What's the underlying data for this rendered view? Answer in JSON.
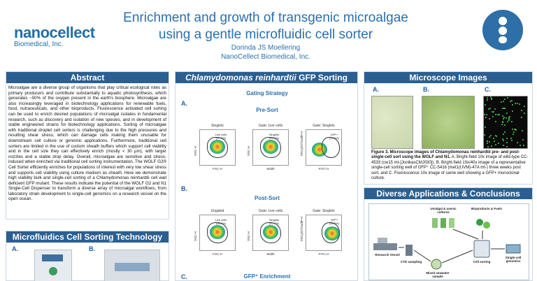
{
  "header": {
    "logo_main": "nanocellect",
    "logo_sub": "Biomedical, Inc.",
    "title_line1": "Enrichment and growth of transgenic microalgae",
    "title_line2": "using a gentle microfluidic cell sorter",
    "author": "Dorinda JS Moellering",
    "affiliation": "NanoCellect Biomedical, Inc."
  },
  "abstract": {
    "heading": "Abstract",
    "body": "Microalgae are a diverse group of organisms that play critical ecological roles as primary producers and contribute substantially to aquatic photosynthesis, which generates ~50% of the oxygen present in the earth's biosphere. Microalgae are also increasingly leveraged in biotechnology applications for renewable fuels, food, nutraceuticals, and other bioproducts. Fluorescence activated cell sorting can be used to enrich desired populations of microalgal isolates in fundamental research, such as discovery and isolation of new species, and in development of stable engineered strains for biotechnology applications. Sorting of microalgae with traditional droplet cell sorters is challenging due to the high pressures and resulting shear stress, which can damage cells making them unusable for downstream cell culture or genomic applications. Furthermore, traditional cell sorters are limited in the use of custom sheath buffers which support cell viability and in the cell size they can effectively enrich (mostly < 30 µm), with larger nozzles and a stable drop delay. Overall, microalgae are sensitive and stress-induced when enriched via traditional cell sorting instrumentation. The WOLF G2® Cell Sorter efficiently enriches for populations of interest with very low shear stress and supports cell viability using culture medium as sheath. Here we demonstrate high viability bulk and single-cell sorting of a Chlamydomonas reinhardtii cell wall deficient GFP mutant. These results indicate the potential of the WOLF G2 and N1 Single-Cell Dispenser to transform a diverse array of microalgal workflows, from laboratory strain development to single-cell genomics on a research vessel on the open ocean."
  },
  "microfluidics": {
    "heading": "Microfluidics Cell Sorting Technology",
    "label_a": "A.",
    "label_b": "B."
  },
  "chlamy": {
    "heading_italic": "Chlamydomonas reinhardtii",
    "heading_rest": " GFP Sorting",
    "gating_title": "Gating Strategy",
    "label_a": "A.",
    "pre_sort": "Pre-Sort",
    "label_b": "B.",
    "post_sort": "Post-Sort",
    "label_c": "C.",
    "gfp_enrichment": "GFP⁺ Enrichment",
    "plots": [
      {
        "title": "Singlets",
        "xlabel": "FSC-H",
        "ylabel": "SSC-H",
        "gate": "Live cells (97.5%)"
      },
      {
        "title": "Gate: Live cells",
        "xlabel": "Width",
        "ylabel": "SSC-H",
        "gate": "Singlets (93.9%)"
      },
      {
        "title": "Gate: Singlets",
        "xlabel": "FITC-H",
        "ylabel": "PECy5/7/AxdiP-H",
        "gate": "GFP+ (12.9%)"
      },
      {
        "title": "Ungated",
        "xlabel": "FSC-H",
        "ylabel": "SSC-H",
        "gate": "Live cells (98.2%)"
      },
      {
        "title": "Gate: Live cells",
        "xlabel": "Width",
        "ylabel": "SSC-H",
        "gate": "Singlets (97.7%)"
      },
      {
        "title": "Gate: Singlets",
        "xlabel": "FITC-H",
        "ylabel": "PECy5/7/AxdiP-H",
        "gate": "GFP+ (96.3%)"
      }
    ]
  },
  "microscope": {
    "heading": "Microscope Images",
    "label_a": "A.",
    "label_b": "B.",
    "label_c": "C.",
    "caption_bold": "Figure 3. Microscope images of Chlamydomonas reinhardtii pre- and post-single-cell sort using the WOLF and N1.",
    "caption_rest": " A. Bright-field 10x image of wild-type CC-4533 (cw15 mt-[JonikasCMJ030]). B. Bright-field 10x/40x image of a representative single-cell sorting well of GFP⁺ CC-5416 (met1(UVM)-47A mt-) three weeks post sort, and C. Fluorescence 10x image of same well showing a GFP+ monoclonal culture."
  },
  "diverse": {
    "heading": "Diverse Applications & Conclusions",
    "labels": {
      "vessel": "Research Vessel",
      "ctd": "CTD sampling",
      "unialgal": "Unialgal & axenic cultures",
      "bioproducts": "Bioproducts & Fuels",
      "mixed": "Mixed seawater sample",
      "sorting": "Cell sorting",
      "genomics": "Single-cell genomics"
    }
  },
  "colors": {
    "title_blue": "#2a6fb0",
    "panel_header": "#2b5f91",
    "logo_green": "#2a9d4a",
    "gfp_green": "#49d24e"
  }
}
